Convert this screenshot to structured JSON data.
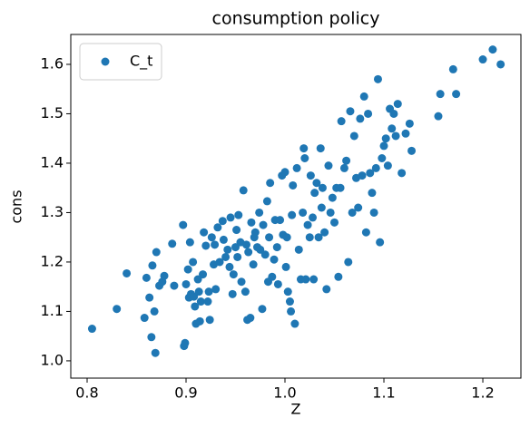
{
  "chart_data": {
    "type": "scatter",
    "title": "consumption policy",
    "x_label": "Z",
    "y_label": "cons",
    "xlim": [
      0.7835,
      1.2385
    ],
    "ylim": [
      0.965,
      1.6605
    ],
    "xticks": [
      0.8,
      0.9,
      {
        "value": 1,
        "label": "1.0"
      },
      1.1,
      1.2
    ],
    "yticks": [
      {
        "value": 1,
        "label": "1.0"
      },
      1.1,
      1.2,
      1.3,
      1.4,
      1.5,
      1.6
    ],
    "legend": "upper left",
    "grid": false,
    "series": [
      {
        "name": "C_t",
        "color": "#1f77b4",
        "x": [
          0.805,
          0.83,
          0.84,
          0.858,
          0.86,
          0.863,
          0.865,
          0.866,
          0.868,
          0.869,
          0.87,
          0.873,
          0.876,
          0.878,
          0.886,
          0.888,
          0.897,
          0.898,
          0.899,
          0.9,
          0.902,
          0.903,
          0.904,
          0.905,
          0.907,
          0.908,
          0.909,
          0.91,
          0.912,
          0.913,
          0.914,
          0.915,
          0.917,
          0.918,
          0.92,
          0.922,
          0.923,
          0.924,
          0.926,
          0.928,
          0.929,
          0.93,
          0.932,
          0.934,
          0.937,
          0.938,
          0.94,
          0.942,
          0.944,
          0.945,
          0.947,
          0.948,
          0.95,
          0.951,
          0.952,
          0.953,
          0.955,
          0.956,
          0.958,
          0.96,
          0.961,
          0.962,
          0.963,
          0.965,
          0.966,
          0.968,
          0.969,
          0.97,
          0.972,
          0.974,
          0.975,
          0.977,
          0.978,
          0.98,
          0.982,
          0.983,
          0.984,
          0.985,
          0.987,
          0.989,
          0.99,
          0.992,
          0.993,
          0.995,
          0.997,
          0.998,
          1.0,
          1.001,
          1.002,
          1.003,
          1.005,
          1.006,
          1.007,
          1.008,
          1.01,
          1.012,
          1.014,
          1.016,
          1.018,
          1.019,
          1.02,
          1.021,
          1.023,
          1.025,
          1.026,
          1.028,
          1.029,
          1.03,
          1.032,
          1.034,
          1.036,
          1.037,
          1.038,
          1.04,
          1.042,
          1.044,
          1.046,
          1.048,
          1.05,
          1.052,
          1.054,
          1.056,
          1.057,
          1.06,
          1.062,
          1.064,
          1.066,
          1.068,
          1.07,
          1.072,
          1.074,
          1.076,
          1.078,
          1.08,
          1.082,
          1.084,
          1.086,
          1.088,
          1.09,
          1.092,
          1.094,
          1.096,
          1.098,
          1.1,
          1.102,
          1.104,
          1.106,
          1.108,
          1.11,
          1.112,
          1.114,
          1.118,
          1.122,
          1.126,
          1.128,
          1.155,
          1.157,
          1.17,
          1.173,
          1.2,
          1.21,
          1.218
        ],
        "values": [
          1.065,
          1.105,
          1.177,
          1.087,
          1.168,
          1.128,
          1.048,
          1.193,
          1.1,
          1.016,
          1.22,
          1.152,
          1.16,
          1.172,
          1.237,
          1.152,
          1.275,
          1.03,
          1.036,
          1.155,
          1.185,
          1.128,
          1.24,
          1.135,
          1.2,
          1.13,
          1.11,
          1.075,
          1.165,
          1.14,
          1.08,
          1.12,
          1.175,
          1.26,
          1.233,
          1.12,
          1.14,
          1.083,
          1.25,
          1.195,
          1.235,
          1.145,
          1.27,
          1.2,
          1.283,
          1.245,
          1.21,
          1.225,
          1.19,
          1.29,
          1.135,
          1.175,
          1.23,
          1.265,
          1.21,
          1.295,
          1.24,
          1.16,
          1.345,
          1.14,
          1.235,
          1.083,
          1.22,
          1.087,
          1.28,
          1.195,
          1.25,
          1.26,
          1.23,
          1.3,
          1.225,
          1.105,
          1.275,
          1.215,
          1.323,
          1.16,
          1.25,
          1.36,
          1.17,
          1.205,
          1.285,
          1.23,
          1.155,
          1.285,
          1.375,
          1.255,
          1.382,
          1.19,
          1.25,
          1.14,
          1.12,
          1.1,
          1.295,
          1.355,
          1.075,
          1.39,
          1.225,
          1.165,
          1.3,
          1.43,
          1.41,
          1.165,
          1.275,
          1.25,
          1.375,
          1.29,
          1.165,
          1.34,
          1.36,
          1.25,
          1.43,
          1.31,
          1.35,
          1.26,
          1.145,
          1.395,
          1.3,
          1.33,
          1.28,
          1.35,
          1.17,
          1.35,
          1.485,
          1.39,
          1.405,
          1.2,
          1.505,
          1.3,
          1.455,
          1.37,
          1.31,
          1.49,
          1.375,
          1.535,
          1.26,
          1.5,
          1.38,
          1.34,
          1.3,
          1.39,
          1.57,
          1.24,
          1.41,
          1.435,
          1.45,
          1.395,
          1.51,
          1.47,
          1.5,
          1.455,
          1.52,
          1.38,
          1.46,
          1.48,
          1.425,
          1.495,
          1.54,
          1.59,
          1.54,
          1.61,
          1.63,
          1.6
        ]
      }
    ]
  }
}
